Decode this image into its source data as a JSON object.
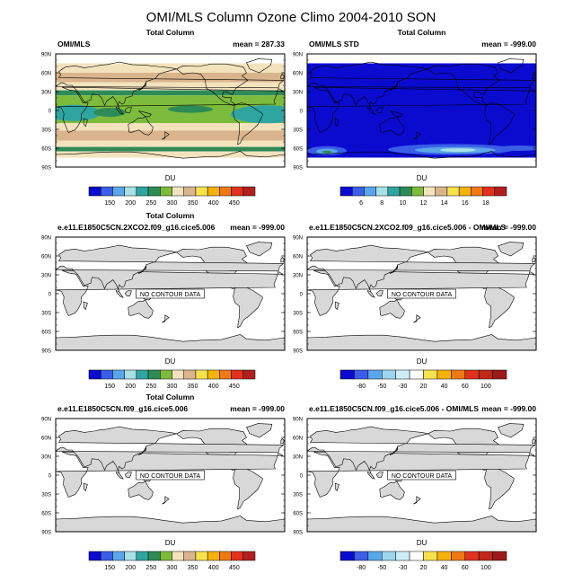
{
  "title": "OMI/MLS Column Ozone Climo 2004-2010 SON",
  "lat_ticks": [
    "90N",
    "60N",
    "30N",
    "0",
    "30S",
    "60S",
    "90S"
  ],
  "colors": {
    "land": "#d8d8d8",
    "ocean": "#ffffff",
    "frame": "#000000"
  },
  "colorbars": {
    "abs": {
      "colors": [
        "#0b0bd0",
        "#3a5ee8",
        "#5aa6ea",
        "#a8e0e8",
        "#2fa5a0",
        "#2e8b57",
        "#7dbb3c",
        "#f3e3bd",
        "#d9b48c",
        "#f6e24c",
        "#f5b20c",
        "#ef7a14",
        "#e2311d",
        "#b21f1f"
      ],
      "labels": [
        "150",
        "200",
        "250",
        "300",
        "350",
        "400",
        "450"
      ]
    },
    "std": {
      "colors": [
        "#0b0bd0",
        "#3a5ee8",
        "#5aa6ea",
        "#a8e0e8",
        "#2fa5a0",
        "#2e8b57",
        "#7dbb3c",
        "#f3e3bd",
        "#d9b48c",
        "#f6e24c",
        "#f5b20c",
        "#ef7a14",
        "#e2311d",
        "#b21f1f"
      ],
      "labels": [
        "6",
        "8",
        "10",
        "12",
        "14",
        "16",
        "18"
      ]
    },
    "diff": {
      "colors": [
        "#0b0bd0",
        "#3a5ee8",
        "#5aa6ea",
        "#9ed6f0",
        "#cdeef8",
        "#ffffff",
        "#f6e24c",
        "#f5b20c",
        "#ef7a14",
        "#e2311d",
        "#c0281c",
        "#9e1a1a"
      ],
      "labels": [
        "-80",
        "-50",
        "-30",
        "20",
        "40",
        "60",
        "100"
      ]
    }
  },
  "panels": [
    {
      "center_title": "Total Column",
      "left_title": "OMI/MLS",
      "right_title": "mean = 287.33",
      "no_data_text": "",
      "colorbar_label": "DU",
      "colorbar": "abs",
      "style": "ozone"
    },
    {
      "center_title": "Total Column",
      "left_title": "OMI/MLS STD",
      "right_title": "mean = -999.00",
      "no_data_text": "",
      "colorbar_label": "DU",
      "colorbar": "std",
      "style": "std"
    },
    {
      "center_title": "Total Column",
      "left_title": "e.e11.E1850C5CN.2XCO2.f09_g16.cice5.006",
      "right_title": "mean = -999.00",
      "no_data_text": "NO CONTOUR DATA",
      "colorbar_label": "DU",
      "colorbar": "abs",
      "style": "empty"
    },
    {
      "center_title": "",
      "left_title": "e.e11.E1850C5CN.2XCO2.f09_g16.cice5.006 - OMI/MLS",
      "right_title": "mean = -999.00",
      "no_data_text": "NO CONTOUR DATA",
      "colorbar_label": "DU",
      "colorbar": "diff",
      "style": "empty"
    },
    {
      "center_title": "Total Column",
      "left_title": "e.e11.E1850C5CN.f09_g16.cice5.006",
      "right_title": "mean = -999.00",
      "no_data_text": "NO CONTOUR DATA",
      "colorbar_label": "DU",
      "colorbar": "abs",
      "style": "empty"
    },
    {
      "center_title": "",
      "left_title": "e.e11.E1850C5CN.f09_g16.cice5.006 - OMI/MLS",
      "right_title": "mean = -999.00",
      "no_data_text": "NO CONTOUR DATA",
      "colorbar_label": "DU",
      "colorbar": "diff",
      "style": "empty"
    }
  ]
}
